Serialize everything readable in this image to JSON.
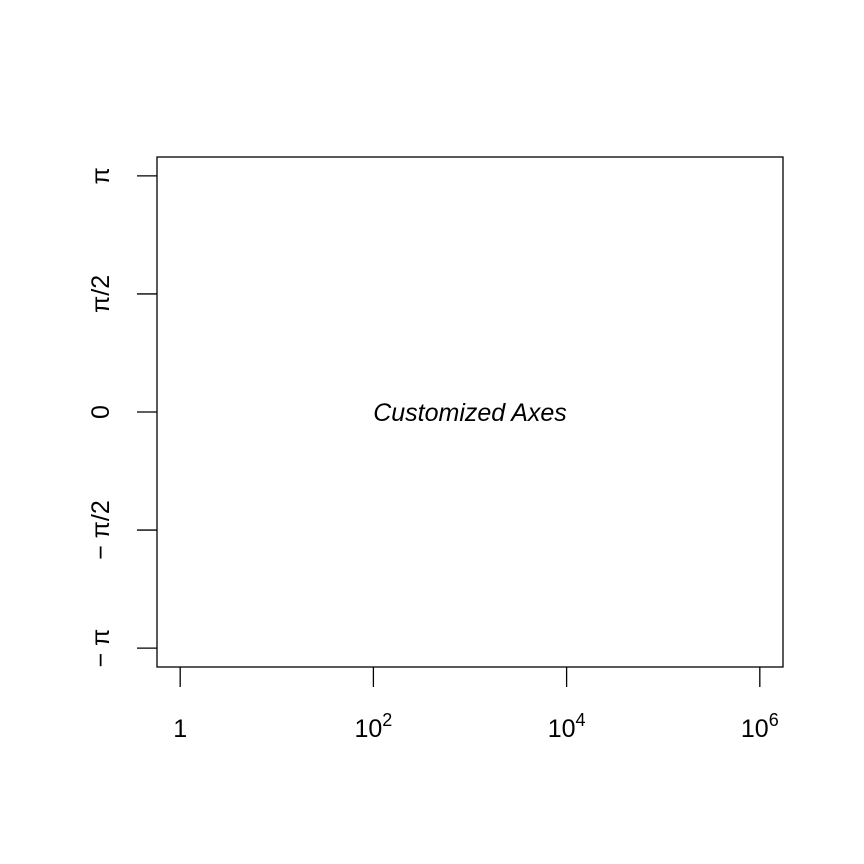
{
  "chart_data": {
    "type": "scatter",
    "title": "",
    "xlabel": "",
    "ylabel": "",
    "x_scale": "log10",
    "xlim": [
      1,
      1000000
    ],
    "ylim": [
      -3.14159,
      3.14159
    ],
    "grid": false,
    "points": [],
    "x_ticks": [
      {
        "value": 1,
        "base": "1",
        "exp": ""
      },
      {
        "value": 100,
        "base": "10",
        "exp": "2"
      },
      {
        "value": 10000,
        "base": "10",
        "exp": "4"
      },
      {
        "value": 1000000,
        "base": "10",
        "exp": "6"
      }
    ],
    "y_ticks": [
      {
        "value": -3.14159,
        "label": "− π"
      },
      {
        "value": -1.5708,
        "label": "− π/2"
      },
      {
        "value": 0,
        "label": "0"
      },
      {
        "value": 1.5708,
        "label": "π/2"
      },
      {
        "value": 3.14159,
        "label": "π"
      }
    ],
    "annotations": [
      {
        "text": "Customized Axes",
        "x": 1000,
        "y": 0
      }
    ],
    "colors": {
      "axis": "#000000",
      "background": "#ffffff"
    }
  }
}
